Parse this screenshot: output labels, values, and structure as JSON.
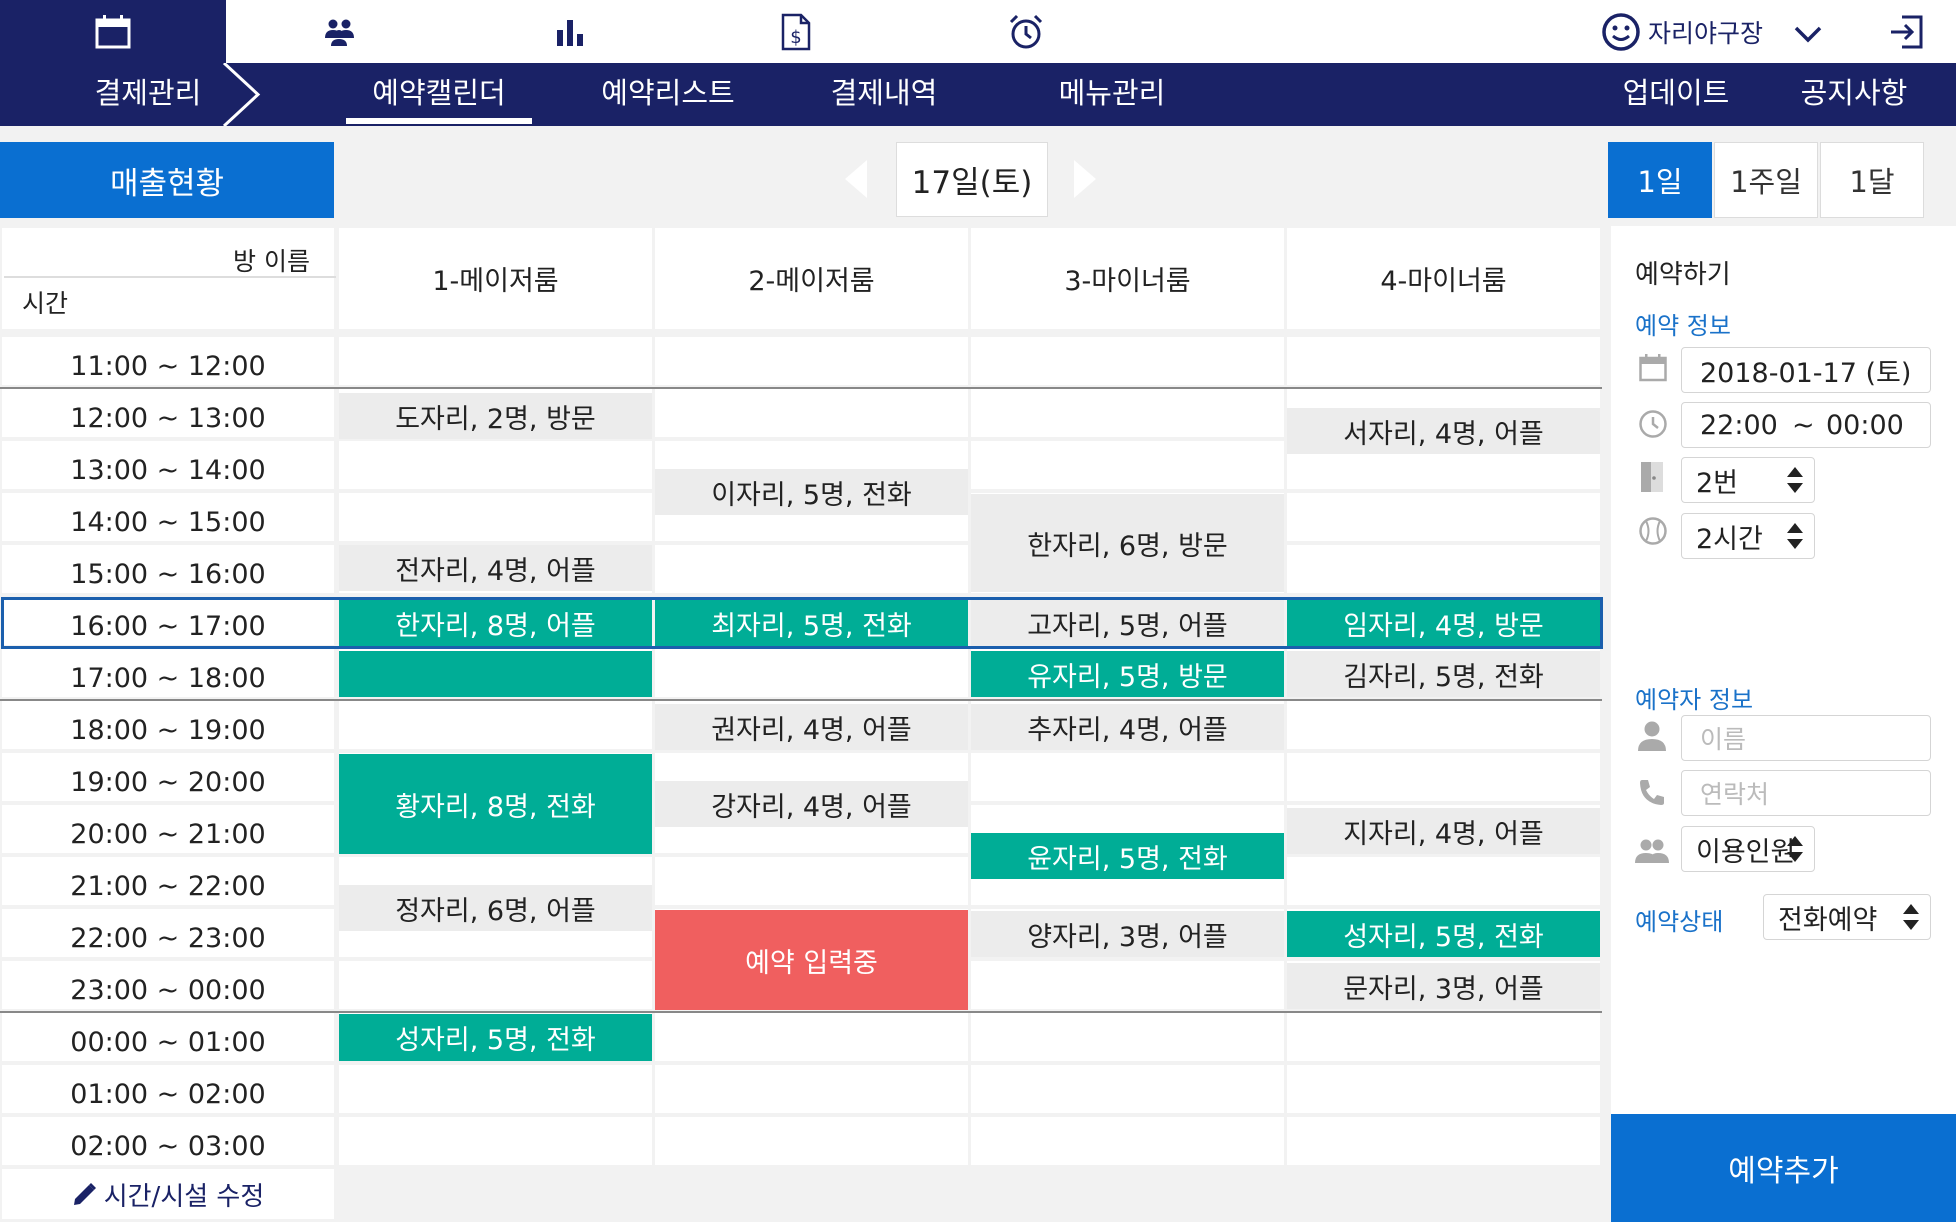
{
  "topbar": {
    "user_name": "자리야구장",
    "icons": [
      "calendar-icon",
      "group-icon",
      "bar-chart-icon",
      "invoice-icon",
      "alarm-icon"
    ]
  },
  "nav": {
    "primary": "결제관리",
    "tabs": [
      "예약캘린더",
      "예약리스트",
      "결제내역",
      "메뉴관리"
    ],
    "active_tab": "예약캘린더",
    "right": [
      "업데이트",
      "공지사항"
    ]
  },
  "toolbar": {
    "sales_label": "매출현황",
    "date_label": "17일(토)",
    "ranges": [
      "1일",
      "1주일",
      "1달"
    ],
    "active_range": "1일"
  },
  "grid": {
    "room_header": "방 이름",
    "time_header": "시간",
    "rooms": [
      "1-메이저룸",
      "2-메이저룸",
      "3-마이너룸",
      "4-마이너룸"
    ],
    "times": [
      "11:00 ~ 12:00",
      "12:00 ~ 13:00",
      "13:00 ~ 14:00",
      "14:00 ~ 15:00",
      "15:00 ~ 16:00",
      "16:00 ~ 17:00",
      "17:00 ~ 18:00",
      "18:00 ~ 19:00",
      "19:00 ~ 20:00",
      "20:00 ~ 21:00",
      "21:00 ~ 22:00",
      "22:00 ~ 23:00",
      "23:00 ~ 00:00",
      "00:00 ~ 01:00",
      "01:00 ~ 02:00",
      "02:00 ~ 03:00"
    ],
    "selected_time": "16:00 ~ 17:00",
    "edit_label": "시간/시설 수정",
    "reservations": [
      {
        "room": 1,
        "label": "도자리, 2명, 방문",
        "status": "gray"
      },
      {
        "room": 1,
        "label": "전자리, 4명, 어플",
        "status": "gray"
      },
      {
        "room": 1,
        "label": "한자리, 8명, 어플",
        "status": "teal"
      },
      {
        "room": 1,
        "label": "",
        "status": "teal"
      },
      {
        "room": 1,
        "label": "황자리, 8명, 전화",
        "status": "teal"
      },
      {
        "room": 1,
        "label": "정자리, 6명, 어플",
        "status": "gray"
      },
      {
        "room": 1,
        "label": "성자리, 5명, 전화",
        "status": "teal"
      },
      {
        "room": 2,
        "label": "이자리, 5명, 전화",
        "status": "gray"
      },
      {
        "room": 2,
        "label": "최자리, 5명, 전화",
        "status": "teal"
      },
      {
        "room": 2,
        "label": "권자리, 4명, 어플",
        "status": "gray"
      },
      {
        "room": 2,
        "label": "강자리, 4명, 어플",
        "status": "gray"
      },
      {
        "room": 2,
        "label": "예약 입력중",
        "status": "red"
      },
      {
        "room": 3,
        "label": "한자리, 6명, 방문",
        "status": "gray"
      },
      {
        "room": 3,
        "label": "고자리, 5명, 어플",
        "status": "gray"
      },
      {
        "room": 3,
        "label": "유자리, 5명, 방문",
        "status": "teal"
      },
      {
        "room": 3,
        "label": "추자리, 4명, 어플",
        "status": "gray"
      },
      {
        "room": 3,
        "label": "윤자리, 5명, 전화",
        "status": "teal"
      },
      {
        "room": 3,
        "label": "양자리, 3명, 어플",
        "status": "gray"
      },
      {
        "room": 4,
        "label": "서자리, 4명, 어플",
        "status": "gray"
      },
      {
        "room": 4,
        "label": "임자리, 4명, 방문",
        "status": "teal"
      },
      {
        "room": 4,
        "label": "김자리, 5명, 전화",
        "status": "gray"
      },
      {
        "room": 4,
        "label": "지자리, 4명, 어플",
        "status": "gray"
      },
      {
        "room": 4,
        "label": "성자리, 5명, 전화",
        "status": "teal"
      },
      {
        "room": 4,
        "label": "문자리, 3명, 어플",
        "status": "gray"
      }
    ]
  },
  "panel": {
    "title": "예약하기",
    "section_reservation": "예약 정보",
    "date_value": "2018-01-17 (토)",
    "time_start": "22:00",
    "time_sep": "~",
    "time_end": "00:00",
    "room_value": "2번",
    "duration_value": "2시간",
    "section_customer": "예약자 정보",
    "name_placeholder": "이름",
    "phone_placeholder": "연락처",
    "people_value": "이용인원",
    "status_label": "예약상태",
    "status_value": "전화예약",
    "add_button": "예약추가"
  },
  "colors": {
    "navy": "#1a2266",
    "primary_blue": "#0a6fd1",
    "teal": "#00ad96",
    "red": "#f05f5f",
    "gray_cell": "#ececec",
    "label_blue": "#1a72c9"
  }
}
